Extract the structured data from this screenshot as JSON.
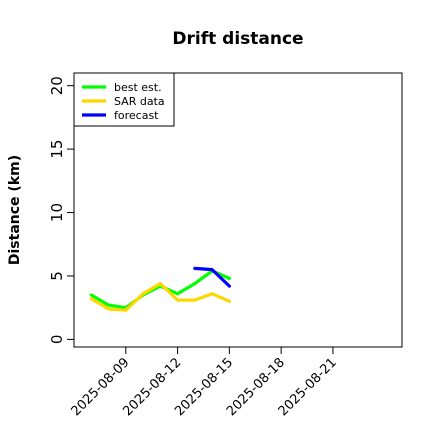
{
  "chart_data": {
    "type": "line",
    "title": "Drift distance",
    "xlabel": "",
    "ylabel": "Distance (km)",
    "xlim": [
      "2025-08-06",
      "2025-08-25"
    ],
    "ylim": [
      -0.6,
      21
    ],
    "yticks": [
      0,
      5,
      10,
      15,
      20
    ],
    "xticks": [
      "2025-08-09",
      "2025-08-12",
      "2025-08-15",
      "2025-08-18",
      "2025-08-21"
    ],
    "grid": false,
    "legend_position": "top-left",
    "series": [
      {
        "name": "best est.",
        "color": "#00ff00",
        "points": [
          [
            "2025-08-07",
            3.5
          ],
          [
            "2025-08-08",
            2.7
          ],
          [
            "2025-08-09",
            2.5
          ],
          [
            "2025-08-10",
            3.5
          ],
          [
            "2025-08-11",
            4.2
          ],
          [
            "2025-08-12",
            3.6
          ],
          [
            "2025-08-13",
            4.4
          ],
          [
            "2025-08-14",
            5.4
          ],
          [
            "2025-08-15",
            4.8
          ]
        ]
      },
      {
        "name": "SAR data",
        "color": "#ffd700",
        "points": [
          [
            "2025-08-07",
            3.2
          ],
          [
            "2025-08-08",
            2.4
          ],
          [
            "2025-08-09",
            2.3
          ],
          [
            "2025-08-10",
            3.6
          ],
          [
            "2025-08-11",
            4.4
          ],
          [
            "2025-08-12",
            3.1
          ],
          [
            "2025-08-13",
            3.1
          ],
          [
            "2025-08-14",
            3.6
          ],
          [
            "2025-08-15",
            3.0
          ]
        ]
      },
      {
        "name": "forecast",
        "color": "#0000ff",
        "points": [
          [
            "2025-08-13",
            5.6
          ],
          [
            "2025-08-14",
            5.5
          ],
          [
            "2025-08-15",
            4.2
          ]
        ]
      }
    ]
  }
}
